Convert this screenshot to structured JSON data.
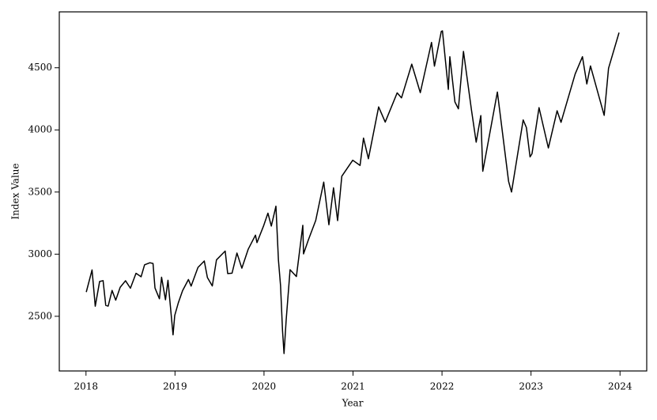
{
  "chart_data": {
    "type": "line",
    "xlabel": "Year",
    "ylabel": "Index Value",
    "color": "#000000",
    "x": [
      2018.003,
      2018.068,
      2018.104,
      2018.153,
      2018.192,
      2018.222,
      2018.249,
      2018.293,
      2018.334,
      2018.384,
      2018.444,
      2018.499,
      2018.562,
      2018.619,
      2018.658,
      2018.718,
      2018.753,
      2018.775,
      2018.825,
      2018.849,
      2018.893,
      2018.921,
      2018.978,
      2018.997,
      2019.038,
      2019.085,
      2019.151,
      2019.181,
      2019.258,
      2019.329,
      2019.364,
      2019.419,
      2019.466,
      2019.564,
      2019.592,
      2019.641,
      2019.696,
      2019.751,
      2019.822,
      2019.904,
      2019.921,
      2019.997,
      2020.044,
      2020.082,
      2020.134,
      2020.162,
      2020.186,
      2020.208,
      2020.225,
      2020.249,
      2020.293,
      2020.364,
      2020.436,
      2020.444,
      2020.499,
      2020.581,
      2020.671,
      2020.729,
      2020.781,
      2020.827,
      2020.874,
      2020.997,
      2021.079,
      2021.118,
      2021.173,
      2021.288,
      2021.362,
      2021.496,
      2021.545,
      2021.66,
      2021.756,
      2021.882,
      2021.915,
      2021.992,
      2022.005,
      2022.071,
      2022.088,
      2022.145,
      2022.184,
      2022.241,
      2022.332,
      2022.384,
      2022.436,
      2022.458,
      2022.499,
      2022.622,
      2022.748,
      2022.781,
      2022.912,
      2022.948,
      2022.989,
      2023.011,
      2023.09,
      2023.195,
      2023.293,
      2023.337,
      2023.496,
      2023.578,
      2023.627,
      2023.668,
      2023.822,
      2023.871,
      2023.989
    ],
    "values": [
      2695,
      2873,
      2581,
      2780,
      2787,
      2588,
      2582,
      2708,
      2630,
      2733,
      2786,
      2726,
      2846,
      2818,
      2914,
      2931,
      2925,
      2728,
      2641,
      2814,
      2633,
      2790,
      2351,
      2507,
      2610,
      2706,
      2796,
      2743,
      2893,
      2945,
      2812,
      2744,
      2954,
      3025,
      2844,
      2847,
      3009,
      2887,
      3039,
      3153,
      3093,
      3231,
      3330,
      3226,
      3386,
      2954,
      2746,
      2386,
      2200,
      2470,
      2875,
      2820,
      3232,
      3002,
      3116,
      3271,
      3580,
      3237,
      3534,
      3270,
      3627,
      3756,
      3714,
      3934,
      3768,
      4185,
      4063,
      4298,
      4258,
      4529,
      4300,
      4704,
      4513,
      4793,
      4797,
      4326,
      4589,
      4225,
      4170,
      4632,
      4155,
      3901,
      4115,
      3667,
      3825,
      4305,
      3586,
      3500,
      4080,
      4019,
      3783,
      3808,
      4179,
      3855,
      4154,
      4061,
      4450,
      4589,
      4370,
      4515,
      4117,
      4496,
      4783
    ],
    "xlim": [
      2017.7,
      2024.3
    ],
    "xticks": [
      2018,
      2019,
      2020,
      2021,
      2022,
      2023,
      2024
    ],
    "ylim": [
      2060,
      4950
    ],
    "yticks": [
      2500,
      3000,
      3500,
      4000,
      4500
    ]
  }
}
